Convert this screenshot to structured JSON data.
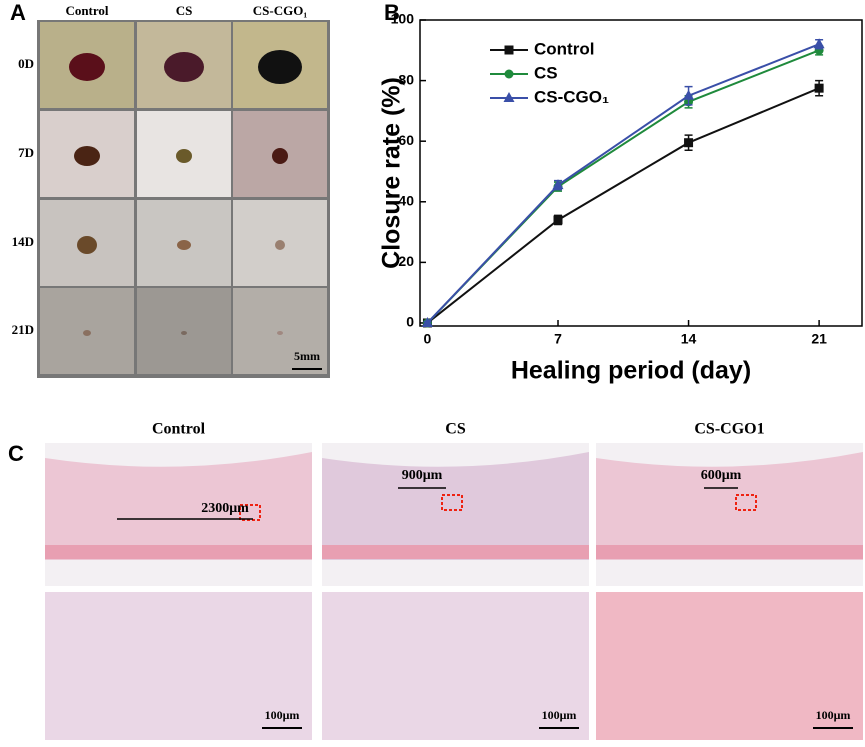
{
  "panel_letters": [
    "A",
    "B",
    "C"
  ],
  "panel_a": {
    "columns": [
      "Control",
      "CS",
      "CS-CGO₁"
    ],
    "rows": [
      "0D",
      "7D",
      "14D",
      "21D"
    ],
    "scale_label": "5mm"
  },
  "chart_data": {
    "type": "line",
    "x_label": "Healing period (day)",
    "y_label": "Closure rate (%)",
    "x": [
      0,
      7,
      14,
      21
    ],
    "series": [
      {
        "name": "Control",
        "color": "#111111",
        "marker": "square",
        "values": [
          0,
          34,
          59.5,
          77.5
        ],
        "errors": [
          0.5,
          1.5,
          2.5,
          2.5
        ]
      },
      {
        "name": "CS",
        "color": "#1f8a3c",
        "marker": "circle",
        "values": [
          0,
          45,
          73,
          90
        ],
        "errors": [
          0.5,
          1.5,
          2,
          1.5
        ]
      },
      {
        "name": "CS-CGO₁",
        "color": "#3a4fa8",
        "marker": "triangle",
        "values": [
          0,
          45.5,
          75,
          92
        ],
        "errors": [
          0.5,
          1.5,
          3,
          1.5
        ]
      }
    ],
    "xlim": [
      -0.4,
      23.3
    ],
    "ylim": [
      -1,
      100
    ],
    "xticks": [
      0,
      7,
      14,
      21
    ],
    "yticks": [
      0,
      20,
      40,
      60,
      80,
      100
    ],
    "legend": "upper-left"
  },
  "panel_c": {
    "columns": [
      "Control",
      "CS",
      "CS-CGO1"
    ],
    "measurements": [
      "2300μm",
      "900μm",
      "600μm"
    ],
    "scale_labels": [
      "100μm",
      "100μm",
      "100μm"
    ]
  }
}
